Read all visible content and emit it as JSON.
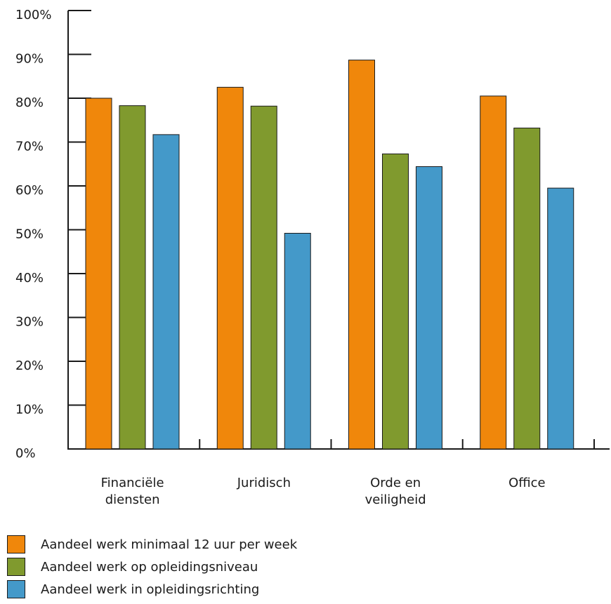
{
  "chart_data": {
    "type": "bar",
    "categories": [
      [
        "Financiële",
        "diensten"
      ],
      [
        "Juridisch"
      ],
      [
        "Orde en",
        "veiligheid"
      ],
      [
        "Office"
      ]
    ],
    "series": [
      {
        "name": "Aandeel werk minimaal 12 uur per week",
        "color": "#f0870b",
        "values": [
          80,
          82.5,
          88.7,
          80.5
        ]
      },
      {
        "name": "Aandeel werk op opleidingsniveau",
        "color": "#809a2e",
        "values": [
          78.3,
          78.2,
          67.3,
          73.2
        ]
      },
      {
        "name": "Aandeel werk in opleidingsrichting",
        "color": "#4499c9",
        "values": [
          71.7,
          49.2,
          64.4,
          59.5
        ]
      }
    ],
    "yticks": [
      "0%",
      "10%",
      "20%",
      "30%",
      "40%",
      "50%",
      "60%",
      "70%",
      "80%",
      "90%",
      "100%"
    ],
    "ylim": [
      0,
      100
    ]
  }
}
